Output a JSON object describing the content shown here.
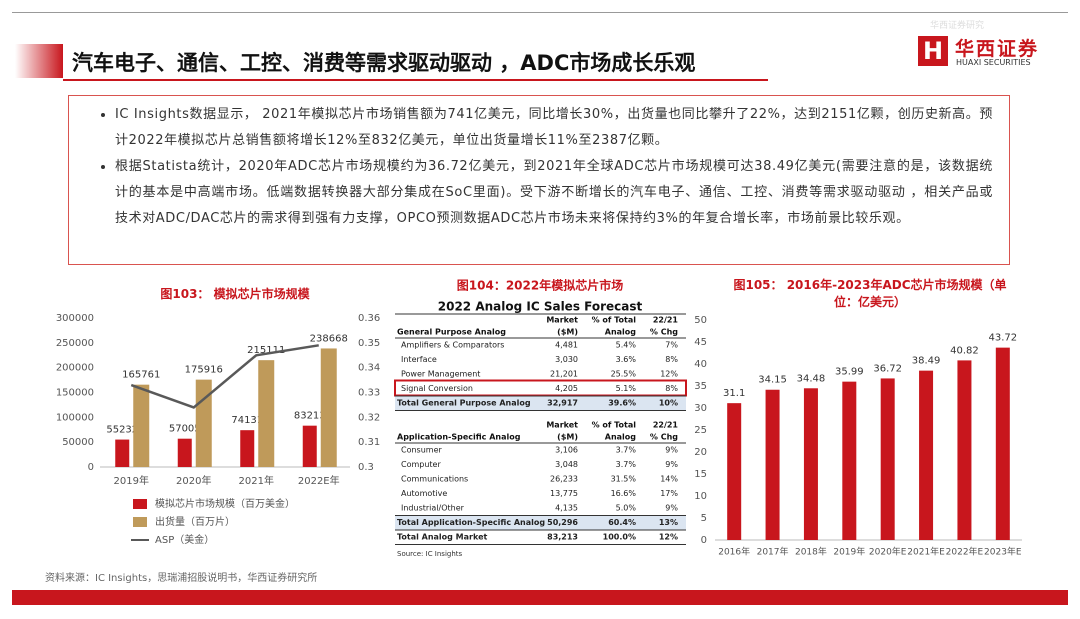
{
  "header": {
    "title": "汽车电子、通信、工控、消费等需求驱动驱动 ，ADC市场成长乐观",
    "logo": "华西证券",
    "logo_en": "HUAXI SECURITIES",
    "watermark": "华西证券研究"
  },
  "bullets": [
    "IC Insights数据显示， 2021年模拟芯片市场销售额为741亿美元，同比增长30%，出货量也同比攀升了22%，达到2151亿颗，创历史新高。预计2022年模拟芯片总销售额将增长12%至832亿美元，单位出货量增长11%至2387亿颗。",
    "根据Statista统计，2020年ADC芯片市场规模约为36.72亿美元，到2021年全球ADC芯片市场规模可达38.49亿美元(需要注意的是，该数据统计的基本是中高端市场。低端数据转换器大部分集成在SoC里面)。受下游不断增长的汽车电子、通信、工控、消费等需求驱动驱动 ，相关产品或技术对ADC/DAC芯片的需求得到强有力支撑，OPCO预测数据ADC芯片市场未来将保持约3%的年复合增长率，市场前景比较乐观。"
  ],
  "chart_data": [
    {
      "type": "bar",
      "title": "图103： 模拟芯片市场规模",
      "categories": [
        "2019年",
        "2020年",
        "2021年",
        "2022E年"
      ],
      "series": [
        {
          "name": "模拟芯片市场规模（百万美金）",
          "color": "#c8161d",
          "values": [
            55232,
            57005,
            74131,
            83213
          ]
        },
        {
          "name": "出货量（百万片）",
          "color": "#bf9a5a",
          "values": [
            165761,
            175916,
            215111,
            238668
          ]
        },
        {
          "name": "ASP（美金）",
          "color": "#595959",
          "type": "line",
          "axis": "y2",
          "values": [
            0.333,
            0.324,
            0.345,
            0.349
          ]
        }
      ],
      "ylim": [
        0,
        300000
      ],
      "yticks": [
        0,
        50000,
        100000,
        150000,
        200000,
        250000,
        300000
      ],
      "y2lim": [
        0.3,
        0.36
      ],
      "y2ticks": [
        0.3,
        0.31,
        0.32,
        0.33,
        0.34,
        0.35,
        0.36
      ]
    },
    {
      "type": "bar",
      "title": "图105： 2016年-2023年ADC芯片市场规模（单位：亿美元）",
      "categories": [
        "2016年",
        "2017年",
        "2018年",
        "2019年",
        "2020年E",
        "2021年E",
        "2022年E",
        "2023年E"
      ],
      "values": [
        31.1,
        34.15,
        34.48,
        35.99,
        36.72,
        38.49,
        40.82,
        43.72
      ],
      "color": "#c8161d",
      "ylim": [
        0,
        50
      ],
      "yticks": [
        0,
        5,
        10,
        15,
        20,
        25,
        30,
        35,
        40,
        45,
        50
      ]
    }
  ],
  "table": {
    "title": "图104：2022年模拟芯片市场",
    "subtitle": "2022 Analog IC Sales Forecast",
    "sections": [
      {
        "header": [
          [
            "General Purpose Analog"
          ],
          [
            "Market",
            "($M)"
          ],
          [
            "% of Total",
            "Analog"
          ],
          [
            "22/21",
            "% Chg"
          ]
        ],
        "rows": [
          [
            "Amplifiers & Comparators",
            "4,481",
            "5.4%",
            "7%"
          ],
          [
            "Interface",
            "3,030",
            "3.6%",
            "8%"
          ],
          [
            "Power Management",
            "21,201",
            "25.5%",
            "12%"
          ],
          [
            "Signal Conversion",
            "4,205",
            "5.1%",
            "8%"
          ],
          [
            "Total General Purpose Analog",
            "32,917",
            "39.6%",
            "10%"
          ]
        ]
      },
      {
        "header": [
          [
            "Application-Specific Analog"
          ],
          [
            "Market",
            "($M)"
          ],
          [
            "% of Total",
            "Analog"
          ],
          [
            "22/21",
            "% Chg"
          ]
        ],
        "rows": [
          [
            "Consumer",
            "3,106",
            "3.7%",
            "9%"
          ],
          [
            "Computer",
            "3,048",
            "3.7%",
            "9%"
          ],
          [
            "Communications",
            "26,233",
            "31.5%",
            "14%"
          ],
          [
            "Automotive",
            "13,775",
            "16.6%",
            "17%"
          ],
          [
            "Industrial/Other",
            "4,135",
            "5.0%",
            "9%"
          ],
          [
            "Total Application-Specific Analog",
            "50,296",
            "60.4%",
            "13%"
          ],
          [
            "Total Analog Market",
            "83,213",
            "100.0%",
            "12%"
          ]
        ]
      }
    ],
    "source": "Source: IC Insights"
  },
  "footer": "资料来源：IC Insights，思瑞浦招股说明书，华西证券研究所"
}
